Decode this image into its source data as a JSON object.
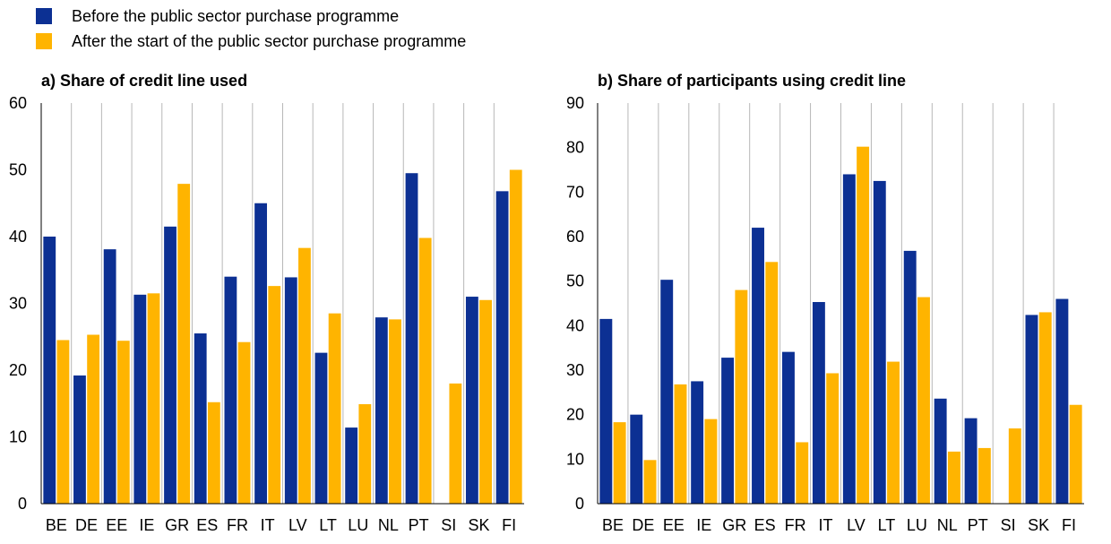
{
  "colors": {
    "before": "#0c3093",
    "after": "#ffb400",
    "grid": "#b7b7b7",
    "axis": "#000000"
  },
  "legend": [
    {
      "label": "Before the public sector purchase programme",
      "color": "#0c3093"
    },
    {
      "label": "After the start of the public sector purchase programme",
      "color": "#ffb400"
    }
  ],
  "chart_data": [
    {
      "type": "bar",
      "title": "a) Share of credit line used",
      "xlabel": "",
      "ylabel": "",
      "ylim": [
        0,
        60
      ],
      "yticks": [
        0,
        10,
        20,
        30,
        40,
        50,
        60
      ],
      "grid": "vertical separators between categories",
      "categories": [
        "BE",
        "DE",
        "EE",
        "IE",
        "GR",
        "ES",
        "FR",
        "IT",
        "LV",
        "LT",
        "LU",
        "NL",
        "PT",
        "SI",
        "SK",
        "FI"
      ],
      "series": [
        {
          "name": "Before the public sector purchase programme",
          "values": [
            40,
            19.2,
            38.1,
            31.3,
            41.5,
            25.5,
            34,
            45,
            33.9,
            22.6,
            11.4,
            27.9,
            49.5,
            null,
            31,
            46.8
          ]
        },
        {
          "name": "After the start of the public sector purchase programme",
          "values": [
            24.5,
            25.3,
            24.4,
            31.5,
            47.9,
            15.2,
            24.2,
            32.6,
            38.3,
            28.5,
            14.9,
            27.6,
            39.8,
            18,
            30.5,
            50
          ]
        }
      ]
    },
    {
      "type": "bar",
      "title": "b) Share of participants using credit line",
      "xlabel": "",
      "ylabel": "",
      "ylim": [
        0,
        90
      ],
      "yticks": [
        0,
        10,
        20,
        30,
        40,
        50,
        60,
        70,
        80,
        90
      ],
      "grid": "vertical separators between categories",
      "categories": [
        "BE",
        "DE",
        "EE",
        "IE",
        "GR",
        "ES",
        "FR",
        "IT",
        "LV",
        "LT",
        "LU",
        "NL",
        "PT",
        "SI",
        "SK",
        "FI"
      ],
      "series": [
        {
          "name": "Before the public sector purchase programme",
          "values": [
            41.5,
            20,
            50.3,
            27.5,
            32.8,
            62,
            34.1,
            45.3,
            74,
            72.5,
            56.8,
            23.6,
            19.2,
            null,
            42.4,
            46
          ]
        },
        {
          "name": "After the start of the public sector purchase programme",
          "values": [
            18.3,
            9.8,
            26.8,
            19,
            48,
            54.3,
            13.8,
            29.3,
            80.2,
            31.9,
            46.4,
            11.7,
            12.5,
            16.9,
            43,
            22.2
          ]
        }
      ]
    }
  ]
}
